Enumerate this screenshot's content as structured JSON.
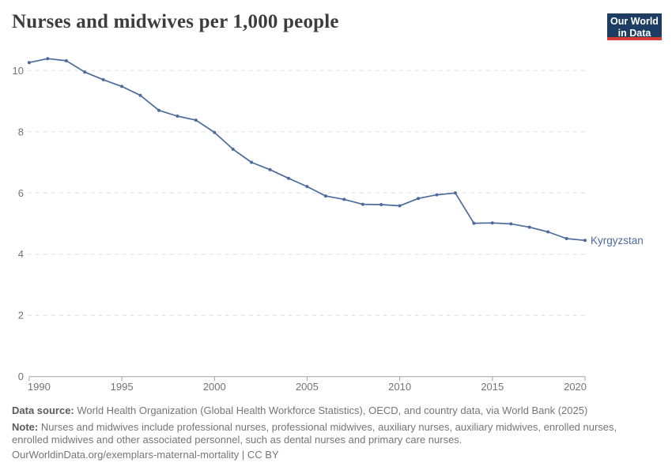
{
  "header": {
    "title": "Nurses and midwives per 1,000 people",
    "logo": {
      "line1": "Our World",
      "line2": "in Data",
      "bg_color": "#1d3d63",
      "accent_color": "#d93c34"
    }
  },
  "chart_data": {
    "type": "line",
    "title": "Nurses and midwives per 1,000 people",
    "xlabel": "",
    "ylabel": "",
    "x": [
      1990,
      1991,
      1992,
      1993,
      1994,
      1995,
      1996,
      1997,
      1998,
      1999,
      2000,
      2001,
      2002,
      2003,
      2004,
      2005,
      2006,
      2007,
      2008,
      2009,
      2010,
      2011,
      2012,
      2013,
      2014,
      2015,
      2016,
      2017,
      2018,
      2019,
      2020
    ],
    "series": [
      {
        "name": "Kyrgyzstan",
        "color": "#4c6a9c",
        "values": [
          10.26,
          10.39,
          10.32,
          9.95,
          9.7,
          9.48,
          9.19,
          8.7,
          8.51,
          8.38,
          7.98,
          7.43,
          7.0,
          6.76,
          6.48,
          6.21,
          5.9,
          5.79,
          5.63,
          5.62,
          5.58,
          5.82,
          5.94,
          6.0,
          5.01,
          5.02,
          4.99,
          4.88,
          4.73,
          4.51,
          4.45
        ]
      }
    ],
    "x_ticks": [
      1990,
      1995,
      2000,
      2005,
      2010,
      2015,
      2020
    ],
    "y_ticks": [
      0,
      2,
      4,
      6,
      8,
      10
    ],
    "xlim": [
      1990,
      2020
    ],
    "ylim": [
      0,
      10.8
    ],
    "grid": "horizontal-dashed",
    "legend_position": "end-of-line-label",
    "colors": {
      "grid": "#dedede",
      "axis": "#a3a3a3",
      "tick": "#727272"
    }
  },
  "footer": {
    "data_source_label": "Data source:",
    "data_source_text": " World Health Organization (Global Health Workforce Statistics), OECD, and country data, via World Bank (2025)",
    "note_label": "Note:",
    "note_text": " Nurses and midwives include professional nurses, professional midwives, auxiliary nurses, auxiliary midwives, enrolled nurses, enrolled midwives and other associated personnel, such as dental nurses and primary care nurses.",
    "link_text": "OurWorldinData.org/exemplars-maternal-mortality | CC BY"
  }
}
